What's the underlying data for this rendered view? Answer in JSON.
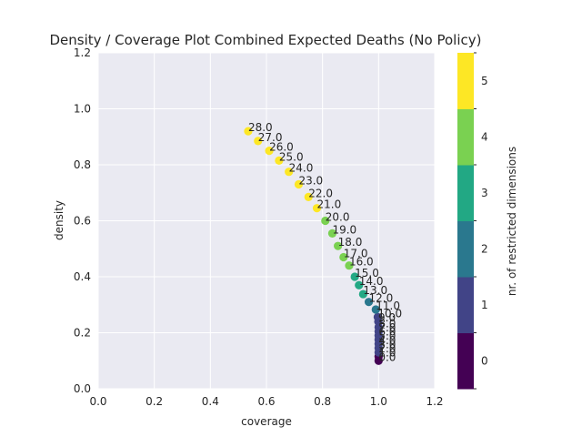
{
  "chart_data": {
    "type": "scatter",
    "title": "Density / Coverage Plot Combined Expected Deaths (No Policy)",
    "xlabel": "coverage",
    "ylabel": "density",
    "xlim": [
      0.0,
      1.2
    ],
    "ylim": [
      0.0,
      1.2
    ],
    "xticks": [
      "0.0",
      "0.2",
      "0.4",
      "0.6",
      "0.8",
      "1.0",
      "1.2"
    ],
    "yticks": [
      "0.0",
      "0.2",
      "0.4",
      "0.6",
      "0.8",
      "1.0",
      "1.2"
    ],
    "grid": true,
    "points": [
      {
        "label": "0.0",
        "x": 1.0,
        "y": 0.1,
        "dims": 0
      },
      {
        "label": "1.0",
        "x": 1.0,
        "y": 0.115,
        "dims": 0
      },
      {
        "label": "2.0",
        "x": 1.0,
        "y": 0.13,
        "dims": 1
      },
      {
        "label": "3.0",
        "x": 1.0,
        "y": 0.145,
        "dims": 1
      },
      {
        "label": "4.0",
        "x": 1.0,
        "y": 0.16,
        "dims": 1
      },
      {
        "label": "5.0",
        "x": 1.0,
        "y": 0.175,
        "dims": 1
      },
      {
        "label": "6.0",
        "x": 1.0,
        "y": 0.19,
        "dims": 1
      },
      {
        "label": "7.0",
        "x": 1.0,
        "y": 0.205,
        "dims": 1
      },
      {
        "label": "8.0",
        "x": 1.0,
        "y": 0.22,
        "dims": 1
      },
      {
        "label": "9.0",
        "x": 0.999,
        "y": 0.24,
        "dims": 1
      },
      {
        "label": "10.0",
        "x": 0.997,
        "y": 0.256,
        "dims": 1
      },
      {
        "label": "11.0",
        "x": 0.99,
        "y": 0.283,
        "dims": 2
      },
      {
        "label": "12.0",
        "x": 0.965,
        "y": 0.31,
        "dims": 2
      },
      {
        "label": "13.0",
        "x": 0.945,
        "y": 0.338,
        "dims": 3
      },
      {
        "label": "14.0",
        "x": 0.93,
        "y": 0.37,
        "dims": 3
      },
      {
        "label": "15.0",
        "x": 0.915,
        "y": 0.4,
        "dims": 3
      },
      {
        "label": "16.0",
        "x": 0.895,
        "y": 0.44,
        "dims": 4
      },
      {
        "label": "17.0",
        "x": 0.875,
        "y": 0.47,
        "dims": 4
      },
      {
        "label": "18.0",
        "x": 0.855,
        "y": 0.51,
        "dims": 4
      },
      {
        "label": "19.0",
        "x": 0.835,
        "y": 0.555,
        "dims": 4
      },
      {
        "label": "20.0",
        "x": 0.81,
        "y": 0.6,
        "dims": 4
      },
      {
        "label": "21.0",
        "x": 0.78,
        "y": 0.645,
        "dims": 5
      },
      {
        "label": "22.0",
        "x": 0.75,
        "y": 0.685,
        "dims": 5
      },
      {
        "label": "23.0",
        "x": 0.715,
        "y": 0.73,
        "dims": 5
      },
      {
        "label": "24.0",
        "x": 0.68,
        "y": 0.775,
        "dims": 5
      },
      {
        "label": "25.0",
        "x": 0.645,
        "y": 0.815,
        "dims": 5
      },
      {
        "label": "26.0",
        "x": 0.61,
        "y": 0.85,
        "dims": 5
      },
      {
        "label": "27.0",
        "x": 0.57,
        "y": 0.885,
        "dims": 5
      },
      {
        "label": "28.0",
        "x": 0.535,
        "y": 0.92,
        "dims": 5
      }
    ],
    "colorbar": {
      "label": "nr. of restricted dimensions",
      "ticks": [
        "0",
        "1",
        "2",
        "3",
        "4",
        "5"
      ],
      "colors": [
        "#440154",
        "#414487",
        "#2a788e",
        "#22a884",
        "#7ad151",
        "#fde725"
      ]
    }
  }
}
